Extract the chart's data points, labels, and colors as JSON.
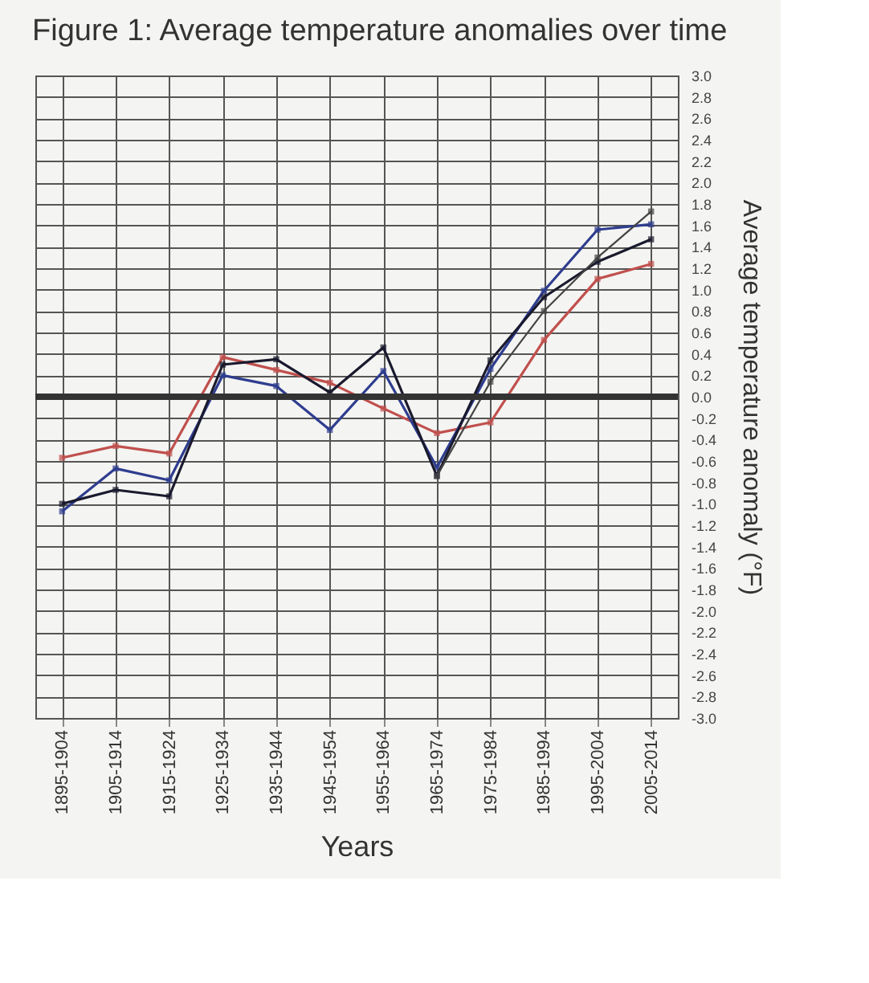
{
  "chart_data": {
    "type": "line",
    "title": "Figure 1:  Average temperature anomalies over time",
    "xlabel": "Years",
    "ylabel": "Average temperature anomaly (°F)",
    "categories": [
      "1895-1904",
      "1905-1914",
      "1915-1924",
      "1925-1934",
      "1935-1944",
      "1945-1954",
      "1955-1964",
      "1965-1974",
      "1975-1984",
      "1985-1994",
      "1995-2004",
      "2005-2014"
    ],
    "series": [
      {
        "color": "#c0504d",
        "values": [
          -0.57,
          -0.46,
          -0.53,
          0.37,
          0.25,
          0.13,
          -0.11,
          -0.34,
          -0.24,
          0.53,
          1.1,
          1.24
        ]
      },
      {
        "color": "#2e3d8f",
        "values": [
          -1.07,
          -0.67,
          -0.78,
          0.2,
          0.1,
          -0.31,
          0.24,
          -0.66,
          0.26,
          0.99,
          1.56,
          1.61
        ]
      },
      {
        "color": "#1a1a2e",
        "values": [
          -1.0,
          -0.87,
          -0.93,
          0.3,
          0.35,
          0.04,
          0.46,
          -0.74,
          0.34,
          0.93,
          1.26,
          1.47
        ]
      },
      {
        "color": "#444444",
        "values": [
          null,
          null,
          null,
          null,
          null,
          null,
          null,
          -0.74,
          0.14,
          0.8,
          1.3,
          1.73
        ]
      }
    ],
    "ylim": [
      -3.0,
      3.0
    ],
    "yticks": [
      {
        "value": -3,
        "label": "-3.0"
      },
      {
        "value": -2.8,
        "label": "-2.8"
      },
      {
        "value": -2.6,
        "label": "-2.6"
      },
      {
        "value": -2.4,
        "label": "-2.4"
      },
      {
        "value": -2.2,
        "label": "-2.2"
      },
      {
        "value": -2,
        "label": "-2.0"
      },
      {
        "value": -1.8,
        "label": "-1.8"
      },
      {
        "value": -1.6,
        "label": "-1.6"
      },
      {
        "value": -1.4,
        "label": "-1.4"
      },
      {
        "value": -1.2,
        "label": "-1.2"
      },
      {
        "value": -1,
        "label": "-1.0"
      },
      {
        "value": -0.8,
        "label": "-0.8"
      },
      {
        "value": -0.6,
        "label": "-0.6"
      },
      {
        "value": -0.4,
        "label": "-0.4"
      },
      {
        "value": -0.2,
        "label": "-0.2"
      },
      {
        "value": 0,
        "label": "0.0"
      },
      {
        "value": 0.2,
        "label": "0.2"
      },
      {
        "value": 0.4,
        "label": "0.4"
      },
      {
        "value": 0.6,
        "label": "0.6"
      },
      {
        "value": 0.8,
        "label": "0.8"
      },
      {
        "value": 1,
        "label": "1.0"
      },
      {
        "value": 1.2,
        "label": "1.2"
      },
      {
        "value": 1.4,
        "label": "1.4"
      },
      {
        "value": 1.6,
        "label": "1.6"
      },
      {
        "value": 1.8,
        "label": "1.8"
      },
      {
        "value": 2,
        "label": "2.0"
      },
      {
        "value": 2.2,
        "label": "2.2"
      },
      {
        "value": 2.4,
        "label": "2.4"
      },
      {
        "value": 2.6,
        "label": "2.6"
      },
      {
        "value": 2.8,
        "label": "2.8"
      },
      {
        "value": 3,
        "label": "3.0"
      }
    ],
    "ref_lines": [
      {
        "axis": "y",
        "value": 0,
        "color": "#333333"
      }
    ],
    "grid": true,
    "marker": "square",
    "line_style": "solid"
  }
}
